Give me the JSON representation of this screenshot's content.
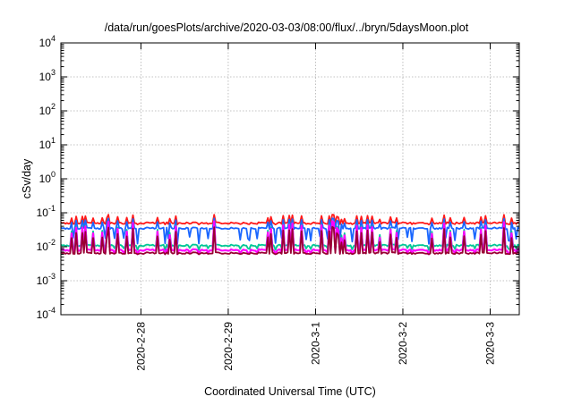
{
  "chart_data": {
    "type": "line",
    "title": "/data/run/goesPlots/archive/2020-03-03/08:00/flux/../bryn/5daysMoon.plot",
    "xlabel": "Coordinated Universal Time (UTC)",
    "ylabel": "cSv/day",
    "yscale": "log",
    "ylim": [
      0.0001,
      10000
    ],
    "xlim": [
      "2020-02-27T02:00",
      "2020-03-03T08:00"
    ],
    "grid": true,
    "legend": "none",
    "x_ticks": [
      {
        "label": "2020-2-28",
        "value": "2020-02-28"
      },
      {
        "label": "2020-2-29",
        "value": "2020-02-29"
      },
      {
        "label": "2020-3-1",
        "value": "2020-03-01"
      },
      {
        "label": "2020-3-2",
        "value": "2020-03-02"
      },
      {
        "label": "2020-3-3",
        "value": "2020-03-03"
      }
    ],
    "y_ticks": [
      {
        "base": "10",
        "exp": "-4",
        "value": 0.0001
      },
      {
        "base": "10",
        "exp": "-3",
        "value": 0.001
      },
      {
        "base": "10",
        "exp": "-2",
        "value": 0.01
      },
      {
        "base": "10",
        "exp": "-1",
        "value": 0.1
      },
      {
        "base": "10",
        "exp": "0",
        "value": 1
      },
      {
        "base": "10",
        "exp": "1",
        "value": 10
      },
      {
        "base": "10",
        "exp": "2",
        "value": 100
      },
      {
        "base": "10",
        "exp": "3",
        "value": 1000
      },
      {
        "base": "10",
        "exp": "4",
        "value": 10000
      }
    ],
    "series": [
      {
        "color": "#ff1a1a",
        "baseline": 0.05,
        "spike_peak": 0.09,
        "dip_low": 0.045
      },
      {
        "color": "#1a66ff",
        "baseline": 0.035,
        "spike_peak": 0.07,
        "dip_low": 0.012
      },
      {
        "color": "#00c896",
        "baseline": 0.011,
        "spike_peak": 0.06,
        "dip_low": 0.008
      },
      {
        "color": "#ff00ff",
        "baseline": 0.008,
        "spike_peak": 0.06,
        "dip_low": 0.006
      },
      {
        "color": "#990033",
        "baseline": 0.0065,
        "spike_peak": 0.04,
        "dip_low": 0.006
      }
    ]
  }
}
